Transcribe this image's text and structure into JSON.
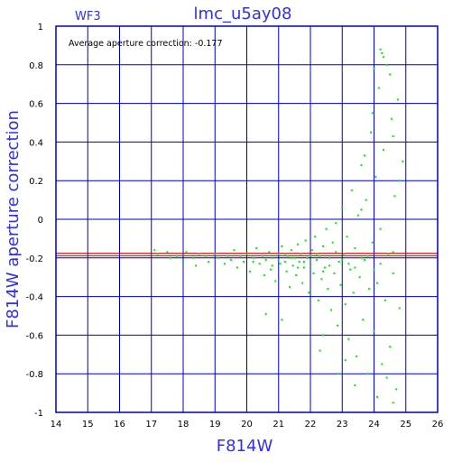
{
  "chart_data": {
    "type": "scatter",
    "title": "lmc_u5ay08",
    "panel_label": "WF3",
    "xlabel": "F814W",
    "ylabel": "F814W aperture correction",
    "annotation": "Average aperture correction:  -0.177",
    "xlim": [
      14,
      26
    ],
    "ylim": [
      -1,
      1
    ],
    "xticks": [
      14,
      15,
      16,
      17,
      18,
      19,
      20,
      21,
      22,
      23,
      24,
      25,
      26
    ],
    "yticks": [
      -1,
      -0.8,
      -0.6,
      -0.4,
      -0.2,
      0,
      0.2,
      0.4,
      0.6,
      0.8,
      1
    ],
    "ytick_labels": [
      "-1",
      "-0.8",
      "-0.6",
      "-0.4",
      "-0.2",
      "0",
      "0.2",
      "0.4",
      "0.6",
      "0.8",
      "1"
    ],
    "grid": true,
    "average_line": {
      "y": -0.177,
      "color": "#e00000"
    },
    "zero_line": {
      "y": -0.19,
      "color": "#e00000"
    },
    "colors": {
      "frame": "#0000c0",
      "grid": "#0000c0",
      "points": "#00ee00",
      "title": "#3030e8"
    },
    "series": [
      {
        "points": [
          [
            17.1,
            -0.16
          ],
          [
            17.2,
            -0.18
          ],
          [
            17.5,
            -0.17
          ],
          [
            17.6,
            -0.2
          ],
          [
            17.8,
            -0.19
          ],
          [
            18.0,
            -0.21
          ],
          [
            18.1,
            -0.17
          ],
          [
            18.3,
            -0.2
          ],
          [
            18.4,
            -0.24
          ],
          [
            18.5,
            -0.18
          ],
          [
            18.7,
            -0.19
          ],
          [
            18.8,
            -0.22
          ],
          [
            19.0,
            -0.18
          ],
          [
            19.1,
            -0.2
          ],
          [
            19.3,
            -0.23
          ],
          [
            19.4,
            -0.19
          ],
          [
            19.5,
            -0.21
          ],
          [
            19.6,
            -0.16
          ],
          [
            19.7,
            -0.25
          ],
          [
            19.8,
            -0.19
          ],
          [
            19.9,
            -0.22
          ],
          [
            20.0,
            -0.18
          ],
          [
            20.1,
            -0.27
          ],
          [
            20.2,
            -0.2
          ],
          [
            20.3,
            -0.15
          ],
          [
            20.4,
            -0.23
          ],
          [
            20.5,
            -0.19
          ],
          [
            20.55,
            -0.29
          ],
          [
            20.6,
            -0.21
          ],
          [
            20.7,
            -0.17
          ],
          [
            20.75,
            -0.26
          ],
          [
            20.8,
            -0.2
          ],
          [
            20.9,
            -0.32
          ],
          [
            21.0,
            -0.18
          ],
          [
            21.05,
            -0.23
          ],
          [
            21.1,
            -0.14
          ],
          [
            21.2,
            -0.22
          ],
          [
            21.25,
            -0.27
          ],
          [
            21.3,
            -0.19
          ],
          [
            21.35,
            -0.35
          ],
          [
            21.4,
            -0.16
          ],
          [
            21.45,
            -0.24
          ],
          [
            21.5,
            -0.2
          ],
          [
            21.55,
            -0.29
          ],
          [
            21.6,
            -0.13
          ],
          [
            21.65,
            -0.22
          ],
          [
            21.7,
            -0.18
          ],
          [
            21.75,
            -0.33
          ],
          [
            21.8,
            -0.25
          ],
          [
            21.85,
            -0.11
          ],
          [
            21.9,
            -0.2
          ],
          [
            21.95,
            -0.38
          ],
          [
            22.0,
            -0.23
          ],
          [
            22.05,
            -0.16
          ],
          [
            22.1,
            -0.28
          ],
          [
            22.15,
            -0.09
          ],
          [
            22.2,
            -0.21
          ],
          [
            22.25,
            -0.42
          ],
          [
            22.3,
            -0.19
          ],
          [
            22.35,
            -0.31
          ],
          [
            22.4,
            -0.14
          ],
          [
            22.45,
            -0.25
          ],
          [
            22.5,
            -0.05
          ],
          [
            22.55,
            -0.36
          ],
          [
            22.6,
            -0.2
          ],
          [
            22.65,
            -0.47
          ],
          [
            22.7,
            -0.12
          ],
          [
            22.75,
            -0.28
          ],
          [
            22.8,
            -0.02
          ],
          [
            22.85,
            -0.55
          ],
          [
            22.9,
            -0.22
          ],
          [
            22.95,
            -0.34
          ],
          [
            23.0,
            0.06
          ],
          [
            23.05,
            -0.18
          ],
          [
            23.1,
            -0.44
          ],
          [
            23.15,
            -0.09
          ],
          [
            23.2,
            -0.62
          ],
          [
            23.25,
            -0.26
          ],
          [
            23.3,
            0.15
          ],
          [
            23.35,
            -0.38
          ],
          [
            23.4,
            -0.15
          ],
          [
            23.45,
            -0.71
          ],
          [
            23.5,
            0.02
          ],
          [
            23.55,
            -0.3
          ],
          [
            23.6,
            0.28
          ],
          [
            23.65,
            -0.52
          ],
          [
            23.7,
            -0.21
          ],
          [
            23.75,
            0.1
          ],
          [
            23.8,
            -0.8
          ],
          [
            23.85,
            -0.36
          ],
          [
            23.9,
            0.45
          ],
          [
            23.95,
            -0.12
          ],
          [
            24.0,
            -0.58
          ],
          [
            24.05,
            0.22
          ],
          [
            24.1,
            -0.33
          ],
          [
            24.15,
            0.68
          ],
          [
            24.2,
            -0.05
          ],
          [
            24.25,
            -0.75
          ],
          [
            24.3,
            0.36
          ],
          [
            24.35,
            -0.42
          ],
          [
            24.4,
            0.8
          ],
          [
            24.45,
            -0.18
          ],
          [
            24.5,
            -0.66
          ],
          [
            24.55,
            0.52
          ],
          [
            24.6,
            -0.28
          ],
          [
            24.65,
            0.12
          ],
          [
            24.7,
            -0.88
          ],
          [
            24.75,
            0.62
          ],
          [
            24.8,
            -0.46
          ],
          [
            24.9,
            0.3
          ],
          [
            24.2,
            0.88
          ],
          [
            24.25,
            0.86
          ],
          [
            24.3,
            0.84
          ],
          [
            24.0,
            0.78
          ],
          [
            24.5,
            0.75
          ],
          [
            23.95,
            0.55
          ],
          [
            24.6,
            0.43
          ],
          [
            23.7,
            0.33
          ],
          [
            24.8,
            0.2
          ],
          [
            23.6,
            0.05
          ],
          [
            20.2,
            -0.22
          ],
          [
            20.8,
            -0.24
          ],
          [
            21.2,
            -0.18
          ],
          [
            21.6,
            -0.25
          ],
          [
            22.0,
            -0.19
          ],
          [
            22.4,
            -0.27
          ],
          [
            22.8,
            -0.17
          ],
          [
            23.2,
            -0.23
          ],
          [
            23.6,
            -0.2
          ],
          [
            24.0,
            -0.26
          ],
          [
            21.0,
            -0.21
          ],
          [
            21.4,
            -0.2
          ],
          [
            21.8,
            -0.22
          ],
          [
            22.2,
            -0.18
          ],
          [
            22.6,
            -0.24
          ],
          [
            23.0,
            -0.21
          ],
          [
            23.4,
            -0.25
          ],
          [
            23.8,
            -0.19
          ],
          [
            24.2,
            -0.23
          ],
          [
            24.6,
            -0.17
          ],
          [
            20.6,
            -0.49
          ],
          [
            21.1,
            -0.52
          ],
          [
            22.4,
            -0.6
          ],
          [
            22.3,
            -0.68
          ],
          [
            23.1,
            -0.73
          ],
          [
            23.4,
            -0.86
          ],
          [
            24.1,
            -0.92
          ],
          [
            24.6,
            -0.95
          ],
          [
            22.9,
            -0.8
          ],
          [
            24.4,
            -0.82
          ]
        ]
      }
    ]
  }
}
